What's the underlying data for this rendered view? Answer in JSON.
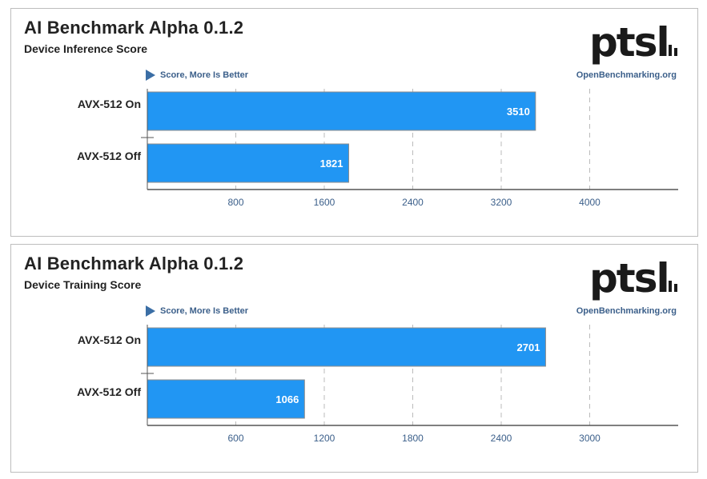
{
  "brand": {
    "logo_text": "ptsl",
    "site": "OpenBenchmarking.org"
  },
  "charts": [
    {
      "title": "AI Benchmark Alpha 0.1.2",
      "subtitle": "Device Inference Score",
      "hint": "Score, More Is Better"
    },
    {
      "title": "AI Benchmark Alpha 0.1.2",
      "subtitle": "Device Training Score",
      "hint": "Score, More Is Better"
    }
  ],
  "colors": {
    "bar": "#2196f3",
    "bar_border": "#8c8c8c",
    "axis": "#555555",
    "grid": "#bbbbbb",
    "tick_text": "#3b5f8a"
  },
  "chart_data": [
    {
      "type": "bar",
      "orientation": "horizontal",
      "title": "AI Benchmark Alpha 0.1.2",
      "subtitle": "Device Inference Score",
      "categories": [
        "AVX-512 On",
        "AVX-512 Off"
      ],
      "values": [
        3510,
        1821
      ],
      "xlim": [
        0,
        4800
      ],
      "xticks": [
        800,
        1600,
        2400,
        3200,
        4000
      ],
      "grid": true
    },
    {
      "type": "bar",
      "orientation": "horizontal",
      "title": "AI Benchmark Alpha 0.1.2",
      "subtitle": "Device Training Score",
      "categories": [
        "AVX-512 On",
        "AVX-512 Off"
      ],
      "values": [
        2701,
        1066
      ],
      "xlim": [
        0,
        3600
      ],
      "xticks": [
        600,
        1200,
        1800,
        2400,
        3000
      ],
      "grid": true
    }
  ]
}
